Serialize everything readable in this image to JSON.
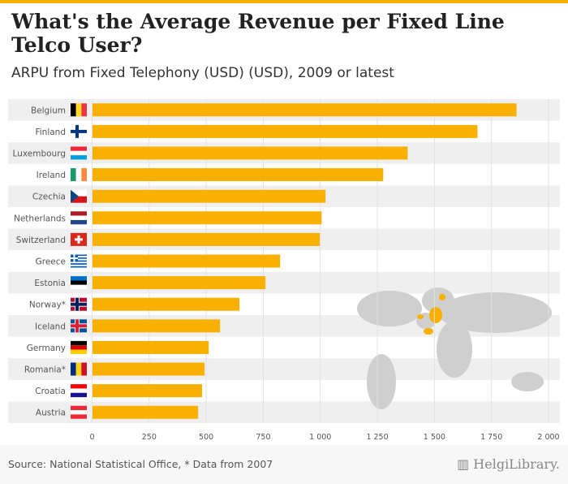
{
  "title": "What's the Average Revenue per Fixed Line Telco User?",
  "subtitle": "ARPU from Fixed Telephony (USD) (USD), 2009 or latest",
  "source": "Source: National Statistical Office, * Data from 2007",
  "logo": "HelgiLibrary",
  "colors": {
    "bar": "#f9b000",
    "rowAlt": "#efefef",
    "grid": "#dde3ea",
    "map": "#cfcfcf"
  },
  "chart_data": {
    "type": "bar",
    "orientation": "horizontal",
    "title": "What's the Average Revenue per Fixed Line Telco User?",
    "xlabel": "",
    "ylabel": "",
    "xlim": [
      0,
      2000
    ],
    "ticks": [
      0,
      250,
      500,
      750,
      1000,
      1250,
      1500,
      1750,
      2000
    ],
    "tick_labels": [
      "0",
      "250",
      "500",
      "750",
      "1 000",
      "1 250",
      "1 500",
      "1 750",
      "2 000"
    ],
    "categories": [
      "Belgium",
      "Finland",
      "Luxembourg",
      "Ireland",
      "Czechia",
      "Netherlands",
      "Switzerland",
      "Greece",
      "Estonia",
      "Norway*",
      "Iceland",
      "Germany",
      "Romania*",
      "Croatia",
      "Austria"
    ],
    "flags": [
      "be",
      "fi",
      "lu",
      "ie",
      "cz",
      "nl",
      "ch",
      "gr",
      "ee",
      "no",
      "is",
      "de",
      "ro",
      "hr",
      "at"
    ],
    "values": [
      1858,
      1687,
      1381,
      1274,
      1021,
      1004,
      996,
      822,
      758,
      644,
      559,
      509,
      491,
      480,
      463
    ]
  }
}
